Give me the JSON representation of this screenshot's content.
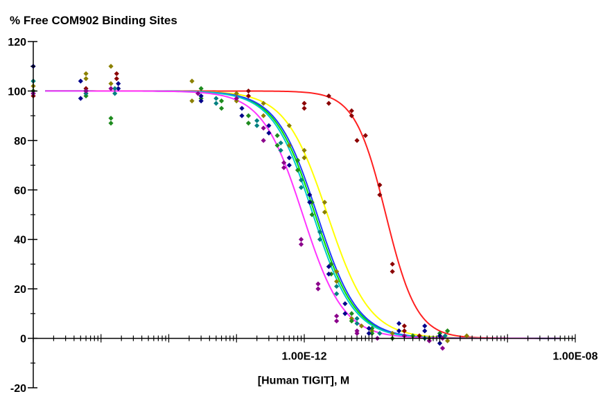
{
  "chart_data": {
    "type": "scatter",
    "title": "% Free COM902 Binding Sites",
    "xlabel": "[Human TIGIT], M",
    "ylabel": "",
    "x_scale": "log",
    "xlim": [
      1e-16,
      1e-08
    ],
    "ylim": [
      -20,
      120
    ],
    "y_ticks": [
      -20,
      0,
      20,
      40,
      60,
      80,
      100,
      120
    ],
    "y_tick_labels": [
      "-20",
      "0",
      "20",
      "40",
      "60",
      "80",
      "100",
      "120"
    ],
    "x_tick_labels": [
      {
        "value": 1e-12,
        "label": "1.00E-12"
      },
      {
        "value": 1e-08,
        "label": "1.00E-08"
      }
    ],
    "grid": false,
    "legend": "none",
    "series": [
      {
        "color": "#8B0000",
        "curve_color": "#FF2020",
        "ic50": 1.6e-11,
        "hill": 1.9,
        "x": [
          1e-16,
          1e-16,
          6e-16,
          6e-16,
          1.7e-15,
          1.7e-15,
          1.5e-13,
          1.5e-13,
          1e-12,
          1e-12,
          2.3e-12,
          2.3e-12,
          5e-12,
          5e-12,
          6e-12,
          8e-12,
          1.3e-11,
          1.3e-11,
          2e-11,
          2e-11,
          3e-11,
          3e-11,
          5e-11,
          1.1e-10
        ],
        "y": [
          100,
          98,
          101,
          99,
          107,
          105,
          100,
          98,
          95,
          93,
          98,
          95,
          92,
          90,
          80,
          82,
          62,
          58,
          30,
          27,
          5,
          3,
          1,
          0
        ]
      },
      {
        "color": "#8B8000",
        "curve_color": "#FFFF00",
        "ic50": 2.2e-12,
        "hill": 1.4,
        "x": [
          1e-16,
          1e-16,
          6e-16,
          6e-16,
          1.4e-15,
          1.4e-15,
          2.2e-14,
          2.2e-14,
          1e-13,
          1e-13,
          2.5e-13,
          2.5e-13,
          6e-13,
          6e-13,
          1e-12,
          1e-12,
          2e-12,
          2e-12,
          3e-12,
          3e-12,
          5e-12,
          7e-12,
          1e-11,
          2e-11,
          4e-11,
          7e-11,
          1.3e-10,
          1.3e-10,
          2.5e-10
        ],
        "y": [
          100,
          102,
          105,
          107,
          110,
          103,
          104,
          96,
          99,
          96,
          95,
          90,
          86,
          78,
          76,
          73,
          55,
          51,
          27,
          23,
          8,
          5,
          3,
          2,
          1,
          0,
          -1,
          3,
          1
        ]
      },
      {
        "color": "#1E8B1E",
        "curve_color": "#00E000",
        "ic50": 1.45e-12,
        "hill": 1.45,
        "x": [
          1e-16,
          1e-16,
          6e-16,
          6e-16,
          1.4e-15,
          1.4e-15,
          3e-14,
          3e-14,
          6e-14,
          6e-14,
          1.5e-13,
          1.5e-13,
          4e-13,
          4e-13,
          8e-13,
          8e-13,
          1.3e-12,
          1.3e-12,
          2.5e-12,
          2.5e-12,
          5e-12,
          5e-12,
          1e-11,
          1e-11,
          2e-11,
          4e-11,
          7e-11,
          1e-10,
          1.3e-10
        ],
        "y": [
          100,
          104,
          98,
          100,
          89,
          87,
          101,
          97,
          93,
          96,
          90,
          87,
          82,
          78,
          68,
          72,
          55,
          50,
          30,
          26,
          10,
          7,
          4,
          2,
          0,
          1,
          -1,
          2,
          3
        ]
      },
      {
        "color": "#00008B",
        "curve_color": "#1E3CFF",
        "ic50": 1.55e-12,
        "hill": 1.45,
        "x": [
          1e-16,
          1e-16,
          5e-16,
          5e-16,
          1.8e-15,
          1.8e-15,
          3e-14,
          3e-14,
          1.2e-13,
          1.2e-13,
          3e-13,
          3e-13,
          6e-13,
          6e-13,
          1.2e-12,
          1.2e-12,
          2.3e-12,
          2.3e-12,
          4e-12,
          4e-12,
          9e-12,
          9e-12,
          2.5e-11,
          2.5e-11,
          6e-11,
          6e-11,
          1e-10,
          1e-10
        ],
        "y": [
          110,
          99,
          97,
          104,
          103,
          101,
          98,
          96,
          93,
          90,
          86,
          83,
          70,
          73,
          58,
          55,
          29,
          26,
          14,
          10,
          4,
          2,
          6,
          3,
          5,
          3,
          -2,
          1
        ]
      },
      {
        "color": "#008080",
        "curve_color": "#00C8C8",
        "ic50": 1.35e-12,
        "hill": 1.45,
        "x": [
          1e-16,
          6e-16,
          6e-16,
          1.6e-15,
          1.6e-15,
          5e-14,
          5e-14,
          2e-13,
          2e-13,
          4.5e-13,
          4.5e-13,
          9e-13,
          9e-13,
          1.7e-12,
          1.7e-12,
          3e-12,
          3e-12,
          6e-12,
          6e-12,
          1.3e-11,
          3e-11,
          6e-11,
          1.2e-10
        ],
        "y": [
          104,
          100,
          99,
          99,
          101,
          97,
          95,
          88,
          86,
          79,
          76,
          64,
          61,
          43,
          40,
          21,
          18,
          8,
          6,
          2,
          1,
          0,
          1
        ]
      },
      {
        "color": "#8B008B",
        "curve_color": "#FF33FF",
        "ic50": 9.5e-13,
        "hill": 1.45,
        "x": [
          1e-16,
          6e-16,
          1.4e-15,
          2.7e-14,
          1e-13,
          2.5e-13,
          2.5e-13,
          5e-13,
          5e-13,
          9e-13,
          9e-13,
          1.6e-12,
          1.6e-12,
          3e-12,
          3e-12,
          6e-12,
          6e-12,
          1.2e-11,
          3e-11,
          7e-11,
          1.1e-10,
          1.1e-10
        ],
        "y": [
          99,
          100,
          101,
          99,
          97,
          85,
          80,
          71,
          69,
          40,
          38,
          22,
          20,
          9,
          7,
          3,
          2,
          0,
          1,
          -1,
          0,
          -4
        ]
      }
    ]
  }
}
